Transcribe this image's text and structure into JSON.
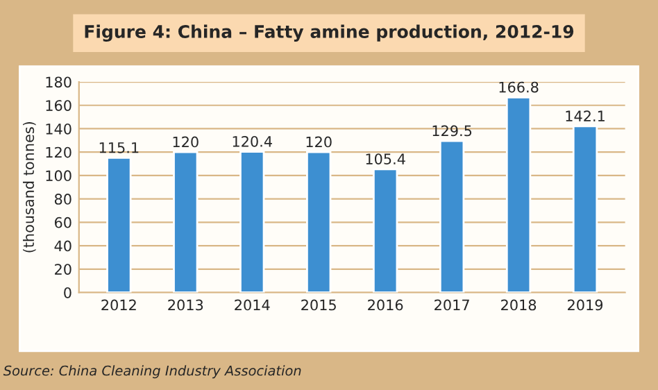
{
  "chart_data": {
    "type": "bar",
    "title": "Figure 4: China – Fatty amine production, 2012-19",
    "ylabel": "(thousand tonnes)",
    "categories": [
      "2012",
      "2013",
      "2014",
      "2015",
      "2016",
      "2017",
      "2018",
      "2019"
    ],
    "values": [
      115.1,
      120,
      120.4,
      120,
      105.4,
      129.5,
      166.8,
      142.1
    ],
    "color": "#3d8fd1",
    "ylim": [
      0,
      180
    ],
    "yticks": [
      0,
      20,
      40,
      60,
      80,
      100,
      120,
      140,
      160,
      180
    ],
    "grid": "y",
    "data_labels": true,
    "annotations": [
      "Source: China Cleaning Industry Association"
    ]
  }
}
